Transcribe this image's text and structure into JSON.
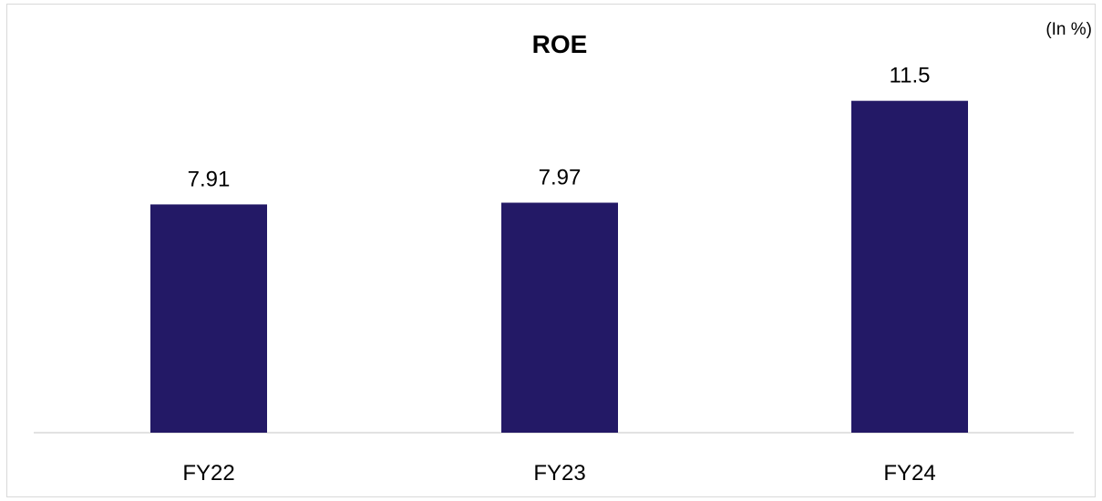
{
  "chart_data": {
    "type": "bar",
    "title": "ROE",
    "unit_note": "(In %)",
    "categories": [
      "FY22",
      "FY23",
      "FY24"
    ],
    "values": [
      7.91,
      7.97,
      11.5
    ],
    "value_labels": [
      "7.91",
      "7.97",
      "11.5"
    ],
    "xlabel": "",
    "ylabel": "",
    "ylim": [
      0,
      13.1
    ],
    "grid": false,
    "legend": "none",
    "bar_color": "#231966",
    "axis_color": "#d9d9d9"
  }
}
